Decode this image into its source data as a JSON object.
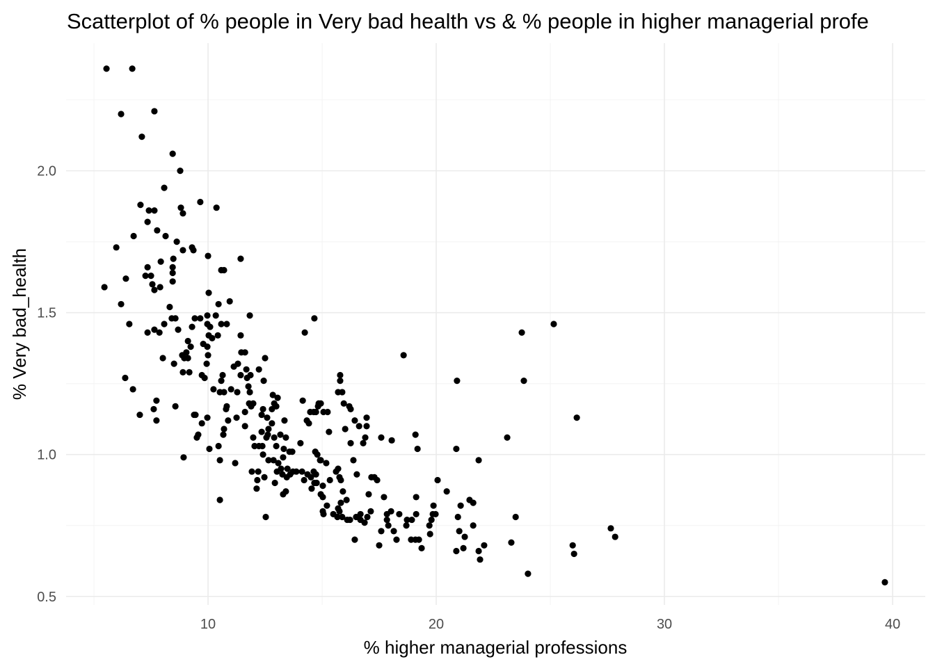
{
  "chart_data": {
    "type": "scatter",
    "title": "Scatterplot of % people in Very bad health vs & % people in higher managerial profe",
    "xlabel": "% higher managerial professions",
    "ylabel": "% Very bad_health",
    "xlim": [
      3.78,
      41.43
    ],
    "ylim": [
      0.47,
      2.45
    ],
    "grid": true,
    "x_major_ticks": [
      10,
      20,
      30,
      40
    ],
    "x_minor_ticks": [
      5,
      15,
      25,
      35
    ],
    "y_major_ticks": [
      0.5,
      1.0,
      1.5,
      2.0
    ],
    "y_minor_ticks": [
      0.75,
      1.25,
      1.75,
      2.25
    ],
    "x_tick_labels": [
      "10",
      "20",
      "30",
      "40"
    ],
    "y_tick_labels": [
      "0.5",
      "1.0",
      "1.5",
      "2.0"
    ],
    "point_color": "#000000",
    "points": [
      [
        5.55,
        2.36
      ],
      [
        6.68,
        2.36
      ],
      [
        6.19,
        2.2
      ],
      [
        7.65,
        2.21
      ],
      [
        7.1,
        2.12
      ],
      [
        8.45,
        2.06
      ],
      [
        8.78,
        2.0
      ],
      [
        8.08,
        1.94
      ],
      [
        7.04,
        1.88
      ],
      [
        7.41,
        1.86
      ],
      [
        7.65,
        1.86
      ],
      [
        8.81,
        1.87
      ],
      [
        8.9,
        1.85
      ],
      [
        9.66,
        1.89
      ],
      [
        10.37,
        1.87
      ],
      [
        7.35,
        1.82
      ],
      [
        6.74,
        1.77
      ],
      [
        5.98,
        1.73
      ],
      [
        7.77,
        1.79
      ],
      [
        8.14,
        1.77
      ],
      [
        8.63,
        1.75
      ],
      [
        8.48,
        1.69
      ],
      [
        9.3,
        1.73
      ],
      [
        9.36,
        1.72
      ],
      [
        8.9,
        1.72
      ],
      [
        7.93,
        1.68
      ],
      [
        7.35,
        1.66
      ],
      [
        7.26,
        1.63
      ],
      [
        7.5,
        1.63
      ],
      [
        8.45,
        1.66
      ],
      [
        8.45,
        1.64
      ],
      [
        8.45,
        1.61
      ],
      [
        7.56,
        1.6
      ],
      [
        7.65,
        1.58
      ],
      [
        7.9,
        1.59
      ],
      [
        5.46,
        1.59
      ],
      [
        6.4,
        1.62
      ],
      [
        10.0,
        1.7
      ],
      [
        11.43,
        1.69
      ],
      [
        10.58,
        1.65
      ],
      [
        10.7,
        1.65
      ],
      [
        6.19,
        1.53
      ],
      [
        6.55,
        1.46
      ],
      [
        8.32,
        1.52
      ],
      [
        8.57,
        1.48
      ],
      [
        8.08,
        1.46
      ],
      [
        7.35,
        1.43
      ],
      [
        7.65,
        1.44
      ],
      [
        7.87,
        1.43
      ],
      [
        9.42,
        1.48
      ],
      [
        9.66,
        1.48
      ],
      [
        9.3,
        1.45
      ],
      [
        8.69,
        1.44
      ],
      [
        8.41,
        1.48
      ],
      [
        9.97,
        1.49
      ],
      [
        10.34,
        1.49
      ],
      [
        9.97,
        1.46
      ],
      [
        10.58,
        1.46
      ],
      [
        10.82,
        1.46
      ],
      [
        10.43,
        1.42
      ],
      [
        10.09,
        1.45
      ],
      [
        10.03,
        1.42
      ],
      [
        10.18,
        1.41
      ],
      [
        9.79,
        1.39
      ],
      [
        9.97,
        1.38
      ],
      [
        10.0,
        1.35
      ],
      [
        9.94,
        1.32
      ],
      [
        9.12,
        1.4
      ],
      [
        9.24,
        1.38
      ],
      [
        9.05,
        1.36
      ],
      [
        8.96,
        1.34
      ],
      [
        8.87,
        1.35
      ],
      [
        9.12,
        1.34
      ],
      [
        9.73,
        1.28
      ],
      [
        9.85,
        1.27
      ],
      [
        9.18,
        1.29
      ],
      [
        8.9,
        1.29
      ],
      [
        8.02,
        1.34
      ],
      [
        8.51,
        1.32
      ],
      [
        10.95,
        1.54
      ],
      [
        10.46,
        1.53
      ],
      [
        10.03,
        1.57
      ],
      [
        11.83,
        1.49
      ],
      [
        12.5,
        1.34
      ],
      [
        11.43,
        1.42
      ],
      [
        11.46,
        1.36
      ],
      [
        11.62,
        1.36
      ],
      [
        11.31,
        1.32
      ],
      [
        11.13,
        1.31
      ],
      [
        11.43,
        1.28
      ],
      [
        11.71,
        1.27
      ],
      [
        11.77,
        1.24
      ],
      [
        11.83,
        1.22
      ],
      [
        11.68,
        1.3
      ],
      [
        11.86,
        1.28
      ],
      [
        12.23,
        1.3
      ],
      [
        12.44,
        1.26
      ],
      [
        11.98,
        1.18
      ],
      [
        11.28,
        1.22
      ],
      [
        11.01,
        1.23
      ],
      [
        10.7,
        1.22
      ],
      [
        10.24,
        1.23
      ],
      [
        10.52,
        1.22
      ],
      [
        10.58,
        1.26
      ],
      [
        10.64,
        1.28
      ],
      [
        10.82,
        1.17
      ],
      [
        10.88,
        1.12
      ],
      [
        11.25,
        1.13
      ],
      [
        11.62,
        1.1
      ],
      [
        10.79,
        1.16
      ],
      [
        10.7,
        1.09
      ],
      [
        10.67,
        1.07
      ],
      [
        11.8,
        1.18
      ],
      [
        11.89,
        1.17
      ],
      [
        11.98,
        1.06
      ],
      [
        12.41,
        1.16
      ],
      [
        12.35,
        1.14
      ],
      [
        12.84,
        1.21
      ],
      [
        12.9,
        1.18
      ],
      [
        13.05,
        1.2
      ],
      [
        12.99,
        1.17
      ],
      [
        12.8,
        1.16
      ],
      [
        12.59,
        1.13
      ],
      [
        12.65,
        1.09
      ],
      [
        12.56,
        1.06
      ],
      [
        12.8,
        1.11
      ],
      [
        12.9,
        1.06
      ],
      [
        12.38,
        1.03
      ],
      [
        12.04,
        1.03
      ],
      [
        12.23,
        1.03
      ],
      [
        13.17,
        1.07
      ],
      [
        13.35,
        1.12
      ],
      [
        12.99,
        1.03
      ],
      [
        13.41,
        1.06
      ],
      [
        13.32,
        1.02
      ],
      [
        13.29,
        0.99
      ],
      [
        13.08,
        0.97
      ],
      [
        13.2,
        0.95
      ],
      [
        13.26,
        0.93
      ],
      [
        13.02,
        0.94
      ],
      [
        13.48,
        0.95
      ],
      [
        13.45,
        0.92
      ],
      [
        13.57,
        1.01
      ],
      [
        14.05,
        1.04
      ],
      [
        14.15,
        1.19
      ],
      [
        14.48,
        1.15
      ],
      [
        14.73,
        1.15
      ],
      [
        14.85,
        1.18
      ],
      [
        14.33,
        1.12
      ],
      [
        14.42,
        1.11
      ],
      [
        14.63,
        1.15
      ],
      [
        14.82,
        1.17
      ],
      [
        14.94,
        1.18
      ],
      [
        15.24,
        1.15
      ],
      [
        14.7,
        1.01
      ],
      [
        14.79,
        1.0
      ],
      [
        14.94,
        0.98
      ],
      [
        14.73,
        0.93
      ],
      [
        14.63,
        0.94
      ],
      [
        14.21,
        0.91
      ],
      [
        13.72,
        0.94
      ],
      [
        13.87,
        0.94
      ],
      [
        14.12,
        0.94
      ],
      [
        14.36,
        0.93
      ],
      [
        15.03,
        0.89
      ],
      [
        14.94,
        0.86
      ],
      [
        15.03,
        0.85
      ],
      [
        15.03,
        0.8
      ],
      [
        15.06,
        0.79
      ],
      [
        15.21,
        0.82
      ],
      [
        15.61,
        0.94
      ],
      [
        15.7,
        0.95
      ],
      [
        15.76,
        0.92
      ],
      [
        15.82,
        0.91
      ],
      [
        15.91,
        0.87
      ],
      [
        15.82,
        0.83
      ],
      [
        16.07,
        0.84
      ],
      [
        15.76,
        0.8
      ],
      [
        16.1,
        0.77
      ],
      [
        16.22,
        0.77
      ],
      [
        16.49,
        0.78
      ],
      [
        16.68,
        0.77
      ],
      [
        15.88,
        0.78
      ],
      [
        15.7,
        0.81
      ],
      [
        16.37,
        0.98
      ],
      [
        16.52,
        0.93
      ],
      [
        16.68,
        0.79
      ],
      [
        16.98,
        0.78
      ],
      [
        17.04,
        0.86
      ],
      [
        17.13,
        0.8
      ],
      [
        17.29,
        0.92
      ],
      [
        17.41,
        0.91
      ],
      [
        17.59,
        0.73
      ],
      [
        17.71,
        0.85
      ],
      [
        17.84,
        0.79
      ],
      [
        17.84,
        0.77
      ],
      [
        18.02,
        0.8
      ],
      [
        17.9,
        0.75
      ],
      [
        18.14,
        0.73
      ],
      [
        18.26,
        0.7
      ],
      [
        18.38,
        0.79
      ],
      [
        18.72,
        0.77
      ],
      [
        18.93,
        0.77
      ],
      [
        19.24,
        0.7
      ],
      [
        19.09,
        0.7
      ],
      [
        18.9,
        0.7
      ],
      [
        19.12,
        0.79
      ],
      [
        19.12,
        0.85
      ],
      [
        18.69,
        0.75
      ],
      [
        19.36,
        0.67
      ],
      [
        19.7,
        0.75
      ],
      [
        19.73,
        0.72
      ],
      [
        19.79,
        0.77
      ],
      [
        19.97,
        0.79
      ],
      [
        19.85,
        0.79
      ],
      [
        20.06,
        0.91
      ],
      [
        20.46,
        0.87
      ],
      [
        20.88,
        0.66
      ],
      [
        21.19,
        0.67
      ],
      [
        20.95,
        0.78
      ],
      [
        21.07,
        0.82
      ],
      [
        21.46,
        0.84
      ],
      [
        21.62,
        0.83
      ],
      [
        21.86,
        0.66
      ],
      [
        21.92,
        0.63
      ],
      [
        22.1,
        0.68
      ],
      [
        21.62,
        0.75
      ],
      [
        21.01,
        0.73
      ],
      [
        21.25,
        0.71
      ],
      [
        20.88,
        1.02
      ],
      [
        20.91,
        1.26
      ],
      [
        21.86,
        0.98
      ],
      [
        19.18,
        1.02
      ],
      [
        18.57,
        1.35
      ],
      [
        19.09,
        1.07
      ],
      [
        18.05,
        1.05
      ],
      [
        17.59,
        1.06
      ],
      [
        16.25,
        1.16
      ],
      [
        16.01,
        1.09
      ],
      [
        16.25,
        1.04
      ],
      [
        16.43,
        1.12
      ],
      [
        16.62,
        1.1
      ],
      [
        16.95,
        1.13
      ],
      [
        16.95,
        1.1
      ],
      [
        16.89,
        1.06
      ],
      [
        16.8,
        1.04
      ],
      [
        17.16,
        0.92
      ],
      [
        14.91,
        0.98
      ],
      [
        15.3,
        1.08
      ],
      [
        15.18,
        0.97
      ],
      [
        15.34,
        0.91
      ],
      [
        15.49,
        0.79
      ],
      [
        15.67,
        0.78
      ],
      [
        14.66,
        1.48
      ],
      [
        14.24,
        1.43
      ],
      [
        15.79,
        1.28
      ],
      [
        15.79,
        1.26
      ],
      [
        15.88,
        1.22
      ],
      [
        15.95,
        1.18
      ],
      [
        15.7,
        1.22
      ],
      [
        15.06,
        1.15
      ],
      [
        16.19,
        1.17
      ],
      [
        23.11,
        1.06
      ],
      [
        23.48,
        0.78
      ],
      [
        23.29,
        0.69
      ],
      [
        23.75,
        1.43
      ],
      [
        23.84,
        1.26
      ],
      [
        25.15,
        1.46
      ],
      [
        26.16,
        1.13
      ],
      [
        25.98,
        0.68
      ],
      [
        26.04,
        0.65
      ],
      [
        24.02,
        0.58
      ],
      [
        27.65,
        0.74
      ],
      [
        27.84,
        0.71
      ],
      [
        39.66,
        0.55
      ],
      [
        16.86,
        0.76
      ],
      [
        16.43,
        0.7
      ],
      [
        17.5,
        0.68
      ],
      [
        19.88,
        0.82
      ],
      [
        11.62,
        1.15
      ],
      [
        12.35,
        1.08
      ],
      [
        12.62,
        1.07
      ],
      [
        12.41,
        1.0
      ],
      [
        12.65,
        0.98
      ],
      [
        12.87,
        0.98
      ],
      [
        12.2,
        0.94
      ],
      [
        11.92,
        0.94
      ],
      [
        12.16,
        0.91
      ],
      [
        12.53,
        0.78
      ],
      [
        13.41,
        0.87
      ],
      [
        13.29,
        0.86
      ],
      [
        13.69,
        1.01
      ],
      [
        14.51,
        0.92
      ],
      [
        14.76,
        0.9
      ],
      [
        14.54,
        0.88
      ],
      [
        14.66,
        0.9
      ],
      [
        11.19,
        0.97
      ],
      [
        10.46,
        1.03
      ],
      [
        10.06,
        1.02
      ],
      [
        10.52,
        0.84
      ],
      [
        8.93,
        0.99
      ],
      [
        9.51,
        1.06
      ],
      [
        9.45,
        1.14
      ],
      [
        9.97,
        1.13
      ],
      [
        9.73,
        1.11
      ],
      [
        9.57,
        1.07
      ],
      [
        9.39,
        1.14
      ],
      [
        7.74,
        1.19
      ],
      [
        7.62,
        1.16
      ],
      [
        7.74,
        1.12
      ],
      [
        8.57,
        1.17
      ],
      [
        7.01,
        1.14
      ],
      [
        6.71,
        1.23
      ],
      [
        6.37,
        1.27
      ],
      [
        12.13,
        0.88
      ],
      [
        12.47,
        0.92
      ],
      [
        12.93,
        0.9
      ],
      [
        13.6,
        0.93
      ],
      [
        10.52,
        0.98
      ]
    ]
  }
}
